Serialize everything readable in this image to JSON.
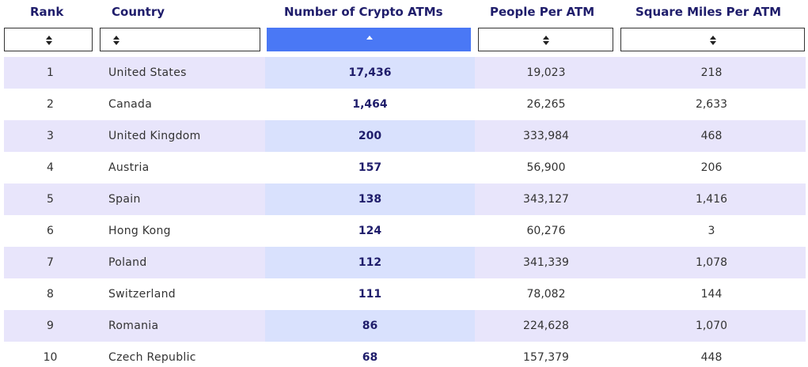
{
  "table": {
    "columns": [
      "Rank",
      "Country",
      "Number of Crypto ATMs",
      "People Per ATM",
      "Square Miles Per ATM"
    ],
    "rows": [
      [
        "1",
        "United States",
        "17,436",
        "19,023",
        "218"
      ],
      [
        "2",
        "Canada",
        "1,464",
        "26,265",
        "2,633"
      ],
      [
        "3",
        "United Kingdom",
        "200",
        "333,984",
        "468"
      ],
      [
        "4",
        "Austria",
        "157",
        "56,900",
        "206"
      ],
      [
        "5",
        "Spain",
        "138",
        "343,127",
        "1,416"
      ],
      [
        "6",
        "Hong Kong",
        "124",
        "60,276",
        "3"
      ],
      [
        "7",
        "Poland",
        "112",
        "341,339",
        "1,078"
      ],
      [
        "8",
        "Switzerland",
        "111",
        "78,082",
        "144"
      ],
      [
        "9",
        "Romania",
        "86",
        "224,628",
        "1,070"
      ],
      [
        "10",
        "Czech Republic",
        "68",
        "157,379",
        "448"
      ]
    ]
  }
}
